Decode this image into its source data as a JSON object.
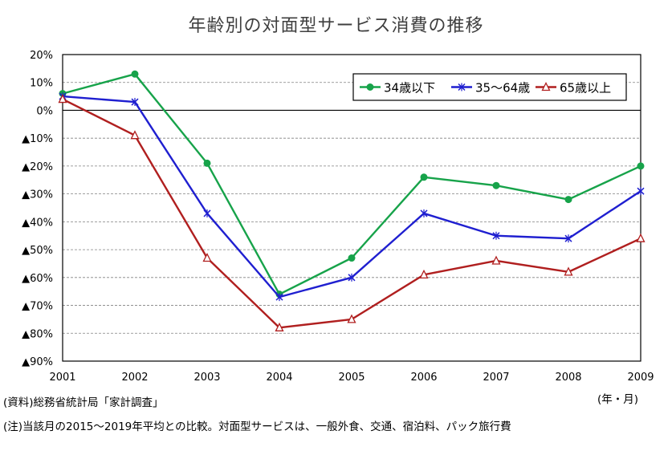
{
  "title": "年齢別の対面型サービス消費の推移",
  "source_note": "(資料)総務省統計局「家計調査」",
  "footnote": "(注)当該月の2015～2019年平均との比較。対面型サービスは、一般外食、交通、宿泊料、パック旅行費",
  "unit_label": "(年・月)",
  "colors": {
    "series1": "#17a34a",
    "series2": "#1f1fd0",
    "series3": "#b01f1f"
  },
  "chart_data": {
    "type": "line",
    "title": "年齢別の対面型サービス消費の推移",
    "xlabel": "(年・月)",
    "ylabel": "",
    "x": [
      "2001",
      "2002",
      "2003",
      "2004",
      "2005",
      "2006",
      "2007",
      "2008",
      "2009"
    ],
    "ylim": [
      -90,
      20
    ],
    "yticks": [
      20,
      10,
      0,
      -10,
      -20,
      -30,
      -40,
      -50,
      -60,
      -70,
      -80,
      -90
    ],
    "ytick_labels": [
      "20%",
      "10%",
      "0%",
      "▲10%",
      "▲20%",
      "▲30%",
      "▲40%",
      "▲50%",
      "▲60%",
      "▲70%",
      "▲80%",
      "▲90%"
    ],
    "grid": true,
    "legend": "top-right",
    "series": [
      {
        "name": "34歳以下",
        "marker": "circle",
        "values": [
          6,
          13,
          -19,
          -66,
          -53,
          -24,
          -27,
          -32,
          -20
        ]
      },
      {
        "name": "35～64歳",
        "marker": "x",
        "values": [
          5,
          3,
          -37,
          -67,
          -60,
          -37,
          -45,
          -46,
          -29
        ]
      },
      {
        "name": "65歳以上",
        "marker": "triangle",
        "values": [
          4,
          -9,
          -53,
          -78,
          -75,
          -59,
          -54,
          -58,
          -46
        ]
      }
    ]
  }
}
